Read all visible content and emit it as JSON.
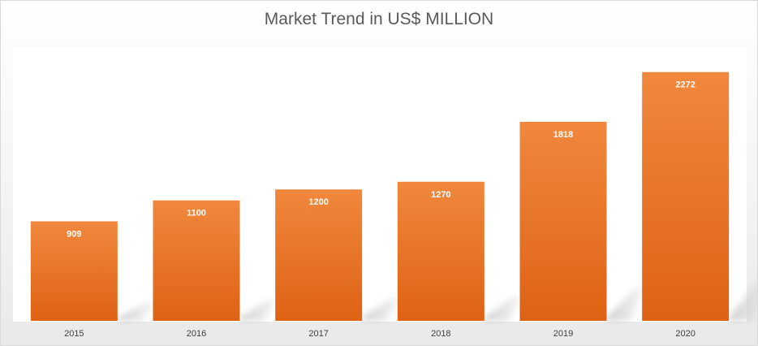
{
  "chart_data": {
    "type": "bar",
    "title": "Market Trend in US$ MILLION",
    "categories": [
      "2015",
      "2016",
      "2017",
      "2018",
      "2019",
      "2020"
    ],
    "values": [
      909,
      1100,
      1200,
      1270,
      1818,
      2272
    ],
    "data_labels": [
      "909",
      "1100",
      "1200",
      "1270",
      "1818",
      "2272"
    ],
    "ylim": [
      0,
      2500
    ],
    "xlabel": "",
    "ylabel": "",
    "grid": false,
    "legend": "none",
    "colors": {
      "bar_top": "#f0883d",
      "bar_bottom": "#de6214",
      "label": "#ffffff",
      "title": "#595959",
      "tick": "#404040"
    }
  }
}
